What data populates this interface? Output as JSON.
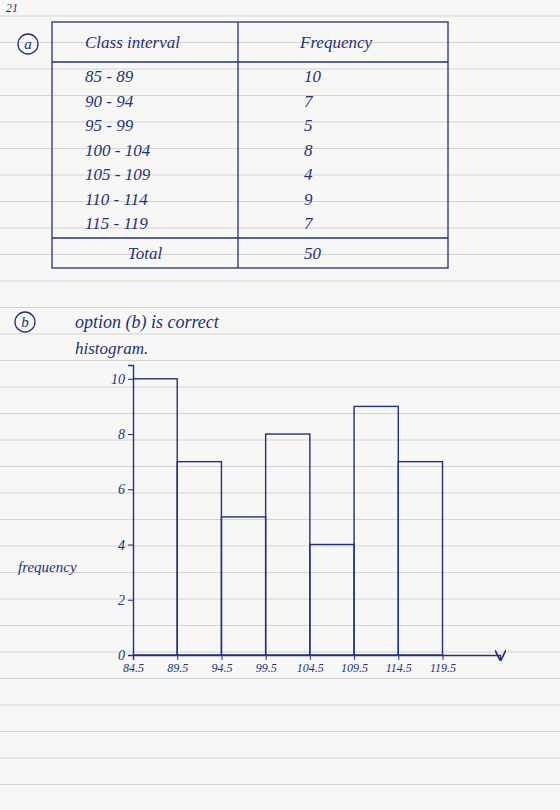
{
  "page_number": "21",
  "part_a": {
    "label": "a",
    "table": {
      "header": [
        "Class interval",
        "Frequency"
      ],
      "rows": [
        [
          "85 - 89",
          "10"
        ],
        [
          "90 - 94",
          "7"
        ],
        [
          "95 - 99",
          "5"
        ],
        [
          "100 - 104",
          "8"
        ],
        [
          "105 - 109",
          "4"
        ],
        [
          "110 - 114",
          "9"
        ],
        [
          "115 - 119",
          "7"
        ]
      ],
      "total": [
        "Total",
        "50"
      ]
    }
  },
  "part_b": {
    "label": "b",
    "text": "option (b) is correct",
    "caption": "histogram."
  },
  "chart_data": {
    "type": "histogram",
    "y_label": "frequency",
    "bins": [
      84.5,
      89.5,
      94.5,
      99.5,
      104.5,
      109.5,
      114.5,
      119.5
    ],
    "values": [
      10,
      7,
      5,
      8,
      4,
      9,
      7
    ],
    "xlim": [
      84.5,
      126
    ],
    "xticks": [
      84.5,
      89.5,
      94.5,
      99.5,
      104.5,
      109.5,
      114.5,
      119.5
    ],
    "ylim": [
      0,
      10.5
    ],
    "yticks": [
      0,
      2,
      4,
      6,
      8,
      10
    ],
    "color": "#24307e"
  }
}
